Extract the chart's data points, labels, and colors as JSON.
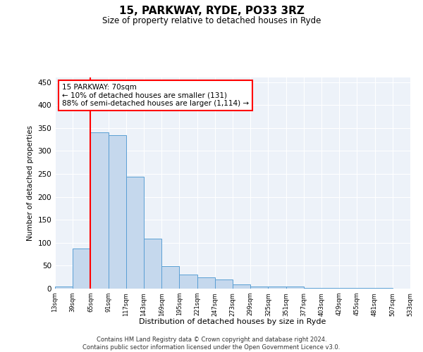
{
  "title": "15, PARKWAY, RYDE, PO33 3RZ",
  "subtitle": "Size of property relative to detached houses in Ryde",
  "xlabel": "Distribution of detached houses by size in Ryde",
  "ylabel": "Number of detached properties",
  "bar_color": "#c5d8ed",
  "bar_edge_color": "#5a9fd4",
  "bar_values": [
    5,
    88,
    341,
    334,
    244,
    109,
    49,
    30,
    24,
    20,
    9,
    5,
    4,
    4,
    2,
    1,
    1,
    1,
    1,
    0
  ],
  "bin_labels": [
    "13sqm",
    "39sqm",
    "65sqm",
    "91sqm",
    "117sqm",
    "143sqm",
    "169sqm",
    "195sqm",
    "221sqm",
    "247sqm",
    "273sqm",
    "299sqm",
    "325sqm",
    "351sqm",
    "377sqm",
    "403sqm",
    "429sqm",
    "455sqm",
    "481sqm",
    "507sqm",
    "533sqm"
  ],
  "annotation_line1": "15 PARKWAY: 70sqm",
  "annotation_line2": "← 10% of detached houses are smaller (131)",
  "annotation_line3": "88% of semi-detached houses are larger (1,114) →",
  "ylim": [
    0,
    460
  ],
  "yticks": [
    0,
    50,
    100,
    150,
    200,
    250,
    300,
    350,
    400,
    450
  ],
  "footer": "Contains HM Land Registry data © Crown copyright and database right 2024.\nContains public sector information licensed under the Open Government Licence v3.0.",
  "background_color": "#edf2f9"
}
